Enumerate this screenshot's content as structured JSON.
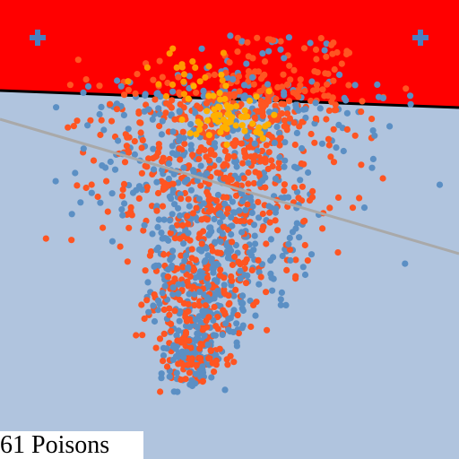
{
  "hud": {
    "counter_text": "61 Poisons"
  },
  "colors": {
    "field": "#b0c4de",
    "danger_zone": "#ff0000",
    "boundary_line": "#000000",
    "trend_line": "#a9a9a9",
    "blue_dot": "#5b8fc4",
    "orange_dot": "#ff5522",
    "amber_dot": "#ff9900",
    "gold_dot": "#ffb000",
    "plus_marker": "#4a7fc0"
  },
  "icons": {
    "marker": "plus-icon"
  }
}
